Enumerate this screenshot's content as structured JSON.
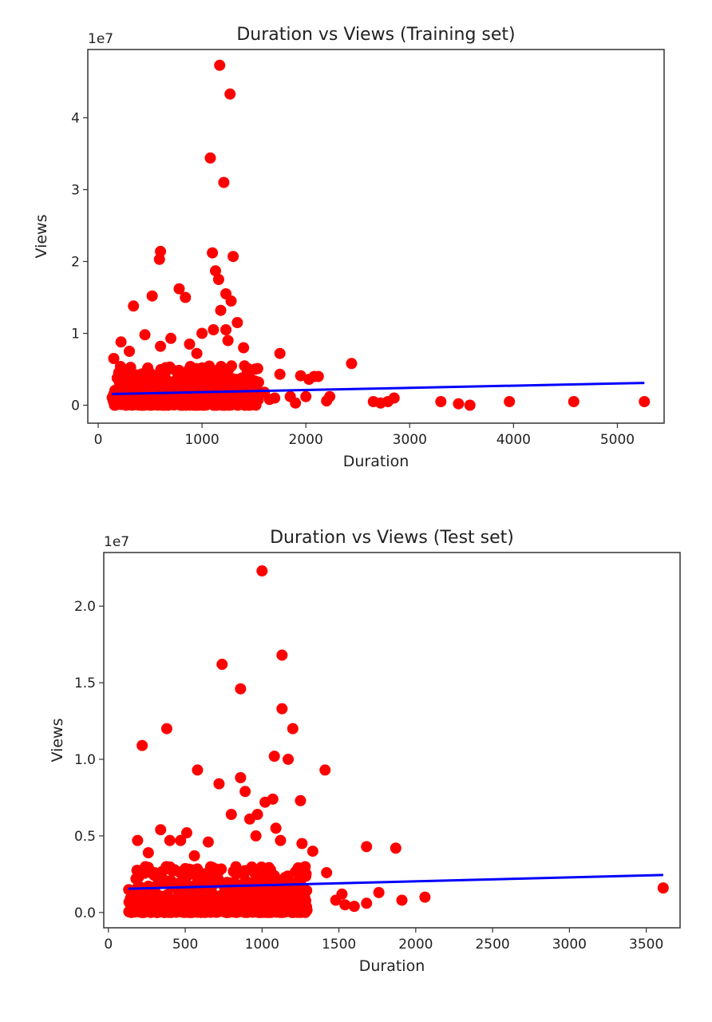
{
  "chart_data": [
    {
      "type": "scatter",
      "title": "Duration vs Views (Training set)",
      "xlabel": "Duration",
      "ylabel": "Views",
      "offset_label": "1e7",
      "xlim": [
        -100,
        5450
      ],
      "ylim": [
        -0.25,
        4.95
      ],
      "xticks": [
        0,
        1000,
        2000,
        3000,
        4000,
        5000
      ],
      "xtick_labels": [
        "0",
        "1000",
        "2000",
        "3000",
        "4000",
        "5000"
      ],
      "yticks": [
        0,
        1,
        2,
        3,
        4
      ],
      "ytick_labels": [
        "0",
        "1",
        "2",
        "3",
        "4"
      ],
      "y_scale_note": "values in units of 1e7",
      "grid": false,
      "colors": {
        "points": "#ff0000",
        "line": "#0000ff"
      },
      "points": [
        [
          1170,
          4.73
        ],
        [
          1270,
          4.33
        ],
        [
          1080,
          3.44
        ],
        [
          1210,
          3.1
        ],
        [
          600,
          2.14
        ],
        [
          590,
          2.03
        ],
        [
          1100,
          2.12
        ],
        [
          1300,
          2.07
        ],
        [
          1130,
          1.87
        ],
        [
          1160,
          1.75
        ],
        [
          1230,
          1.55
        ],
        [
          1280,
          1.45
        ],
        [
          780,
          1.62
        ],
        [
          840,
          1.5
        ],
        [
          520,
          1.52
        ],
        [
          340,
          1.38
        ],
        [
          1180,
          1.32
        ],
        [
          1110,
          1.05
        ],
        [
          1230,
          1.05
        ],
        [
          1340,
          1.15
        ],
        [
          1000,
          1.0
        ],
        [
          450,
          0.98
        ],
        [
          220,
          0.88
        ],
        [
          700,
          0.93
        ],
        [
          1250,
          0.9
        ],
        [
          880,
          0.85
        ],
        [
          1400,
          0.8
        ],
        [
          600,
          0.82
        ],
        [
          300,
          0.75
        ],
        [
          150,
          0.65
        ],
        [
          950,
          0.72
        ],
        [
          1750,
          0.72
        ],
        [
          2440,
          0.58
        ],
        [
          1750,
          0.43
        ],
        [
          1950,
          0.41
        ],
        [
          2080,
          0.4
        ],
        [
          2030,
          0.36
        ],
        [
          2120,
          0.4
        ],
        [
          2650,
          0.05
        ],
        [
          2720,
          0.03
        ],
        [
          2790,
          0.05
        ],
        [
          2850,
          0.1
        ],
        [
          3300,
          0.05
        ],
        [
          3470,
          0.02
        ],
        [
          3580,
          0.0
        ],
        [
          3960,
          0.05
        ],
        [
          4580,
          0.05
        ],
        [
          5260,
          0.05
        ],
        [
          1850,
          0.12
        ],
        [
          2000,
          0.12
        ],
        [
          2200,
          0.06
        ],
        [
          1900,
          0.03
        ],
        [
          1700,
          0.1
        ],
        [
          1600,
          0.18
        ],
        [
          1650,
          0.08
        ],
        [
          2230,
          0.12
        ]
      ],
      "fit_line": {
        "x": [
          130,
          5260
        ],
        "y": [
          0.155,
          0.31
        ]
      }
    },
    {
      "type": "scatter",
      "title": "Duration vs Views (Test set)",
      "xlabel": "Duration",
      "ylabel": "Views",
      "offset_label": "1e7",
      "xlim": [
        -30,
        3720
      ],
      "ylim": [
        -0.1,
        2.35
      ],
      "xticks": [
        0,
        500,
        1000,
        1500,
        2000,
        2500,
        3000,
        3500
      ],
      "xtick_labels": [
        "0",
        "500",
        "1000",
        "1500",
        "2000",
        "2500",
        "3000",
        "3500"
      ],
      "yticks": [
        0.0,
        0.5,
        1.0,
        1.5,
        2.0
      ],
      "ytick_labels": [
        "0.0",
        "0.5",
        "1.0",
        "1.5",
        "2.0"
      ],
      "y_scale_note": "values in units of 1e7",
      "grid": false,
      "colors": {
        "points": "#ff0000",
        "line": "#0000ff"
      },
      "points": [
        [
          1000,
          2.23
        ],
        [
          1130,
          1.68
        ],
        [
          740,
          1.62
        ],
        [
          860,
          1.46
        ],
        [
          1130,
          1.33
        ],
        [
          1200,
          1.2
        ],
        [
          380,
          1.2
        ],
        [
          220,
          1.09
        ],
        [
          1080,
          1.02
        ],
        [
          1170,
          1.0
        ],
        [
          580,
          0.93
        ],
        [
          1410,
          0.93
        ],
        [
          720,
          0.84
        ],
        [
          860,
          0.88
        ],
        [
          890,
          0.79
        ],
        [
          1020,
          0.72
        ],
        [
          1070,
          0.74
        ],
        [
          1250,
          0.73
        ],
        [
          800,
          0.64
        ],
        [
          920,
          0.61
        ],
        [
          970,
          0.64
        ],
        [
          1090,
          0.55
        ],
        [
          340,
          0.54
        ],
        [
          510,
          0.52
        ],
        [
          960,
          0.5
        ],
        [
          190,
          0.47
        ],
        [
          400,
          0.47
        ],
        [
          470,
          0.47
        ],
        [
          650,
          0.46
        ],
        [
          1120,
          0.47
        ],
        [
          1260,
          0.45
        ],
        [
          1680,
          0.43
        ],
        [
          1870,
          0.42
        ],
        [
          1330,
          0.4
        ],
        [
          260,
          0.39
        ],
        [
          560,
          0.37
        ],
        [
          1420,
          0.26
        ],
        [
          1760,
          0.13
        ],
        [
          1910,
          0.08
        ],
        [
          2060,
          0.1
        ],
        [
          1540,
          0.05
        ],
        [
          1680,
          0.06
        ],
        [
          1600,
          0.04
        ],
        [
          3610,
          0.16
        ],
        [
          1480,
          0.08
        ],
        [
          1520,
          0.12
        ]
      ],
      "fit_line": {
        "x": [
          130,
          3610
        ],
        "y": [
          0.155,
          0.245
        ]
      }
    }
  ]
}
